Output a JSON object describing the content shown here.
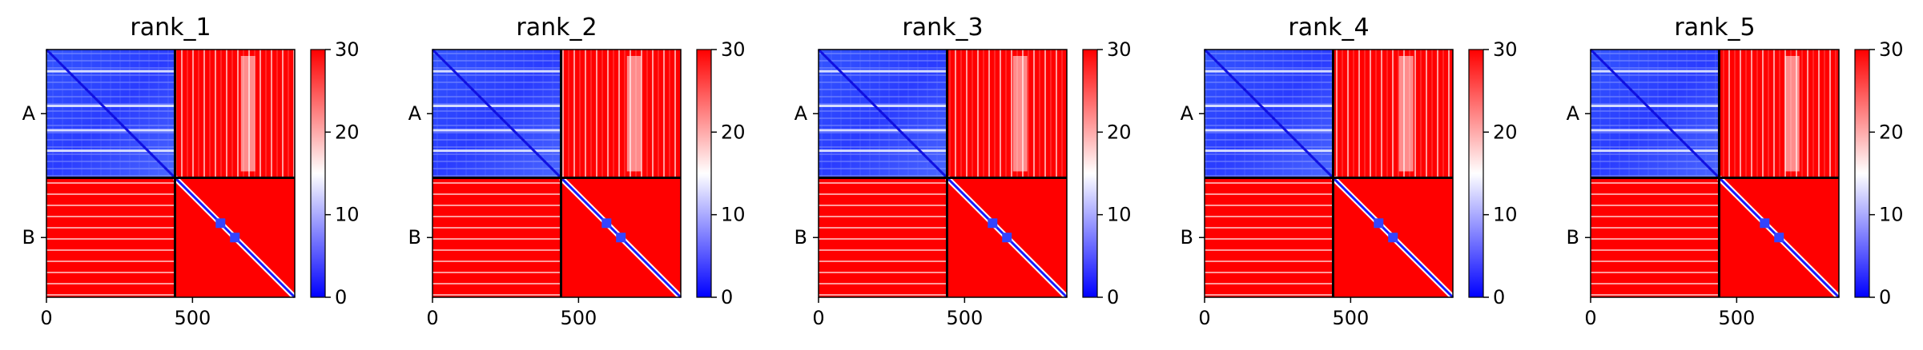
{
  "chart_data": {
    "type": "heatmap",
    "panels": [
      {
        "title": "rank_1"
      },
      {
        "title": "rank_2"
      },
      {
        "title": "rank_3"
      },
      {
        "title": "rank_4"
      },
      {
        "title": "rank_5"
      }
    ],
    "chains": [
      "A",
      "B"
    ],
    "chain_A_length": 440,
    "total_length": 850,
    "x_ticks": [
      0,
      500
    ],
    "xlim": [
      0,
      850
    ],
    "colorbar": {
      "range": [
        0,
        30
      ],
      "ticks": [
        0,
        10,
        20,
        30
      ],
      "colors": [
        "#0000ff",
        "#ffffff",
        "#ff0000"
      ]
    }
  }
}
